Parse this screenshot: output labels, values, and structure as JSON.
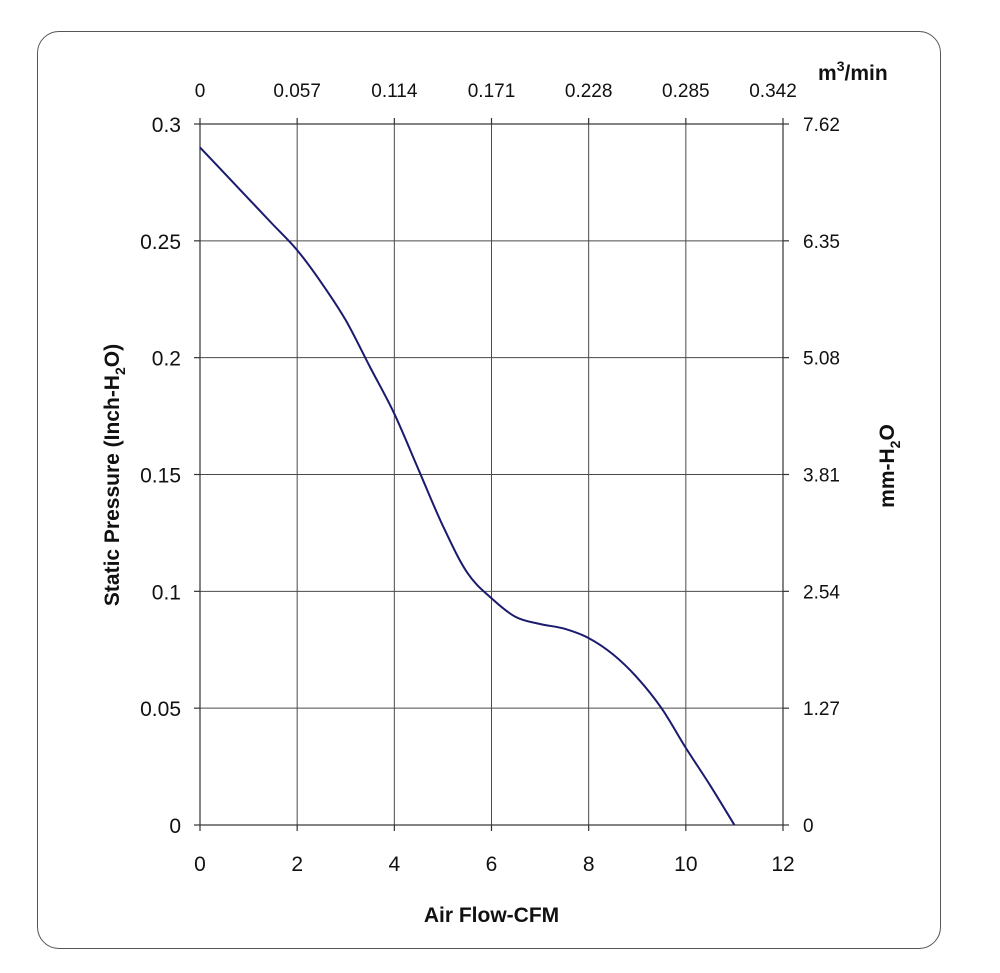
{
  "chart_data": {
    "type": "line",
    "title": "",
    "xlabel": "Air Flow-CFM",
    "ylabel": "Static Pressure (Inch-H2O)",
    "ylabel_parts": [
      "Static Pressure (Inch-H",
      "2",
      "O)"
    ],
    "y2label": "mm-H2O",
    "y2label_parts": [
      "mm-H",
      "2",
      "O"
    ],
    "x2label": "m3/min",
    "x2label_parts": [
      "m",
      "3",
      "/min"
    ],
    "xlim": [
      0,
      12
    ],
    "ylim": [
      0,
      0.3
    ],
    "x_ticks": [
      "0",
      "2",
      "4",
      "6",
      "8",
      "10",
      "12"
    ],
    "y_ticks": [
      "0",
      "0.05",
      "0.1",
      "0.15",
      "0.2",
      "0.25",
      "0.3"
    ],
    "x2_ticks": [
      "0",
      "0.057",
      "0.114",
      "0.171",
      "0.228",
      "0.285",
      "0.342"
    ],
    "y2_ticks": [
      "0",
      "1.27",
      "2.54",
      "3.81",
      "5.08",
      "6.35",
      "7.62"
    ],
    "grid": true,
    "line_color": "#1a1a6e",
    "series": [
      {
        "x": [
          0,
          0.5,
          1,
          1.5,
          2,
          2.5,
          3,
          3.5,
          4,
          4.5,
          5,
          5.5,
          6,
          6.5,
          7,
          7.5,
          8,
          8.5,
          9,
          9.5,
          10,
          10.5,
          11
        ],
        "y": [
          0.29,
          0.279,
          0.268,
          0.257,
          0.246,
          0.232,
          0.216,
          0.196,
          0.176,
          0.152,
          0.128,
          0.108,
          0.097,
          0.089,
          0.086,
          0.084,
          0.08,
          0.073,
          0.063,
          0.05,
          0.033,
          0.017,
          0
        ]
      }
    ]
  }
}
